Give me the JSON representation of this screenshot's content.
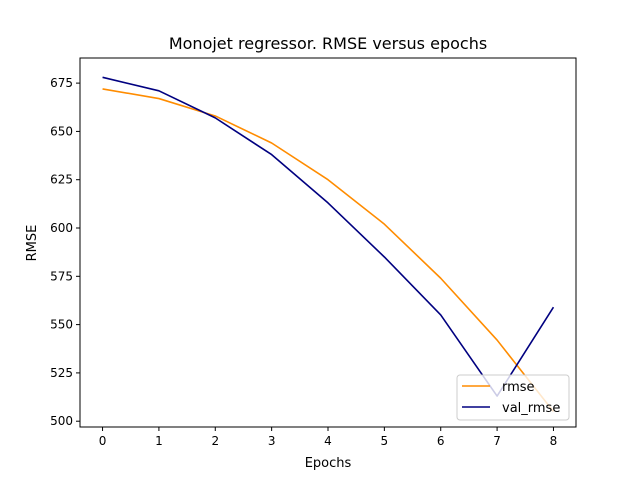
{
  "chart_data": {
    "type": "line",
    "title": "Monojet regressor. RMSE versus epochs",
    "xlabel": "Epochs",
    "ylabel": "RMSE",
    "x": [
      0,
      1,
      2,
      3,
      4,
      5,
      6,
      7,
      8
    ],
    "xlim": [
      -0.4,
      8.4
    ],
    "ylim": [
      497,
      688
    ],
    "xticks": [
      0,
      1,
      2,
      3,
      4,
      5,
      6,
      7,
      8
    ],
    "yticks": [
      500,
      525,
      550,
      575,
      600,
      625,
      650,
      675
    ],
    "grid": false,
    "legend_position": "lower-right",
    "series": [
      {
        "name": "rmse",
        "color": "#ff8c00",
        "values": [
          672,
          667,
          658,
          644,
          625,
          602,
          574,
          542,
          505
        ]
      },
      {
        "name": "val_rmse",
        "color": "#000080",
        "values": [
          678,
          671,
          657,
          638,
          613,
          585,
          555,
          513,
          559
        ]
      }
    ]
  }
}
